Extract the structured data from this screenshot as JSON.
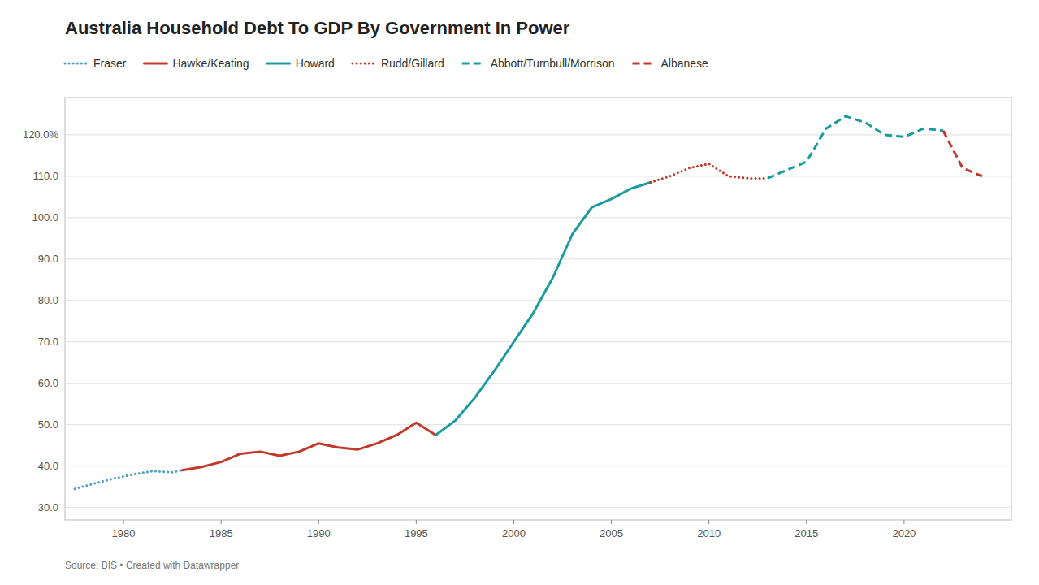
{
  "chart_data": {
    "type": "line",
    "title": "Australia Household Debt To GDP By Government In Power",
    "source": "Source: BIS • Created with Datawrapper",
    "xlim": [
      1977.0,
      2025.5
    ],
    "xticks": [
      1980,
      1985,
      1990,
      1995,
      2000,
      2005,
      2010,
      2015,
      2020
    ],
    "ylim": [
      27,
      129
    ],
    "yticks": [
      {
        "value": 30.0,
        "label": "30.0"
      },
      {
        "value": 40.0,
        "label": "40.0"
      },
      {
        "value": 50.0,
        "label": "50.0"
      },
      {
        "value": 60.0,
        "label": "60.0"
      },
      {
        "value": 70.0,
        "label": "70.0"
      },
      {
        "value": 80.0,
        "label": "80.0"
      },
      {
        "value": 90.0,
        "label": "90.0"
      },
      {
        "value": 100.0,
        "label": "100.0"
      },
      {
        "value": 110.0,
        "label": "110.0"
      },
      {
        "value": 120.0,
        "label": "120.0%"
      }
    ],
    "grid": "y",
    "legend": "top",
    "series": [
      {
        "name": "Fraser",
        "color": "#4d9dc9",
        "line_style": "dotted",
        "x": [
          1977.5,
          1978.5,
          1979.5,
          1980.5,
          1981.5,
          1982.5,
          1983.0
        ],
        "values": [
          34.5,
          35.8,
          37.0,
          38.0,
          38.8,
          38.5,
          39.0
        ]
      },
      {
        "name": "Hawke/Keating",
        "color": "#c0392b",
        "line_style": "solid",
        "x": [
          1983.0,
          1984.0,
          1985.0,
          1986.0,
          1987.0,
          1988.0,
          1989.0,
          1990.0,
          1991.0,
          1992.0,
          1993.0,
          1994.0,
          1995.0,
          1996.0
        ],
        "values": [
          39.0,
          39.8,
          41.0,
          43.0,
          43.5,
          42.5,
          43.5,
          45.5,
          44.5,
          44.0,
          45.5,
          47.5,
          50.5,
          47.5
        ]
      },
      {
        "name": "Howard",
        "color": "#1a9ba1",
        "line_style": "solid",
        "x": [
          1996.0,
          1997.0,
          1998.0,
          1999.0,
          2000.0,
          2001.0,
          2002.0,
          2003.0,
          2004.0,
          2005.0,
          2006.0,
          2007.0
        ],
        "values": [
          47.5,
          51.0,
          56.5,
          63.0,
          70.0,
          77.0,
          85.5,
          96.0,
          102.5,
          104.5,
          107.0,
          108.5
        ]
      },
      {
        "name": "Rudd/Gillard",
        "color": "#c0392b",
        "line_style": "dotted",
        "x": [
          2007.0,
          2008.0,
          2009.0,
          2010.0,
          2011.0,
          2012.0,
          2013.0
        ],
        "values": [
          108.5,
          110.0,
          112.0,
          113.0,
          110.0,
          109.5,
          109.5
        ]
      },
      {
        "name": "Abbott/Turnbull/Morrison",
        "color": "#1a9ba1",
        "line_style": "dashed",
        "x": [
          2013.0,
          2014.0,
          2015.0,
          2016.0,
          2017.0,
          2018.0,
          2019.0,
          2020.0,
          2021.0,
          2022.0
        ],
        "values": [
          109.5,
          111.5,
          113.5,
          121.5,
          124.5,
          123.0,
          120.0,
          119.5,
          121.5,
          121.0
        ]
      },
      {
        "name": "Albanese",
        "color": "#c0392b",
        "line_style": "dashed",
        "x": [
          2022.0,
          2023.0,
          2024.0
        ],
        "values": [
          121.0,
          112.0,
          110.0
        ]
      }
    ]
  }
}
